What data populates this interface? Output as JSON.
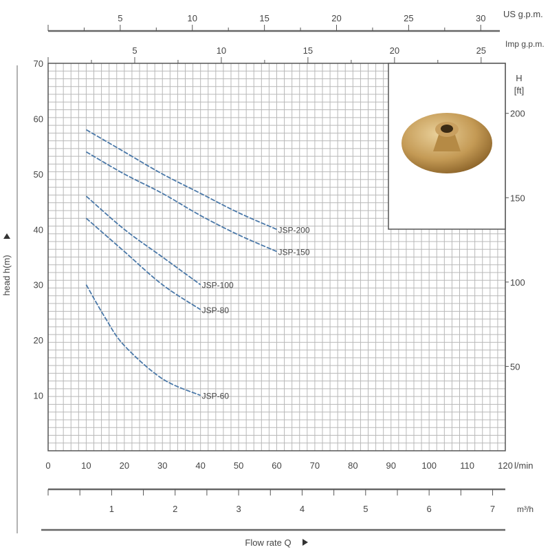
{
  "chart_data": {
    "type": "line",
    "xlabel": "Flow rate Q",
    "ylabel": "head h(m)",
    "x_unit": "l/min",
    "xlim": [
      0,
      120
    ],
    "ylim": [
      0,
      70
    ],
    "x_ticks": [
      0,
      10,
      20,
      30,
      40,
      50,
      60,
      70,
      80,
      90,
      100,
      110,
      120
    ],
    "y_ticks": [
      10,
      20,
      30,
      40,
      50,
      60,
      70
    ],
    "grid": true,
    "secondary_axes": {
      "us_gpm": {
        "label": "US g.p.m.",
        "ticks": [
          5,
          10,
          15,
          20,
          25,
          30
        ]
      },
      "imp_gpm": {
        "label": "Imp g.p.m.",
        "ticks": [
          5,
          10,
          15,
          20,
          25
        ]
      },
      "m3h": {
        "label": "m³/h",
        "ticks": [
          1,
          2,
          3,
          4,
          5,
          6,
          7
        ]
      },
      "ft": {
        "label_top": "H",
        "label_unit": "[ft]",
        "ticks": [
          50,
          100,
          150,
          200
        ]
      }
    },
    "series": [
      {
        "name": "JSP-200",
        "x": [
          10,
          20,
          30,
          40,
          50,
          60
        ],
        "y": [
          58,
          54,
          50,
          46.5,
          43,
          40
        ]
      },
      {
        "name": "JSP-150",
        "x": [
          10,
          20,
          30,
          40,
          50,
          60
        ],
        "y": [
          54,
          50,
          46.5,
          42.5,
          39,
          36
        ]
      },
      {
        "name": "JSP-100",
        "x": [
          10,
          20,
          30,
          40
        ],
        "y": [
          46,
          40,
          35,
          30
        ]
      },
      {
        "name": "JSP-80",
        "x": [
          10,
          20,
          30,
          40
        ],
        "y": [
          42,
          36,
          30,
          25.5
        ]
      },
      {
        "name": "JSP-60",
        "x": [
          10,
          15,
          20,
          30,
          40
        ],
        "y": [
          30,
          24,
          19,
          13,
          10
        ]
      }
    ],
    "colors": {
      "curve": "#4a78a8",
      "grid": "#b8b8b8",
      "axis": "#555555"
    }
  },
  "inset": {
    "image": "impeller-photo"
  }
}
